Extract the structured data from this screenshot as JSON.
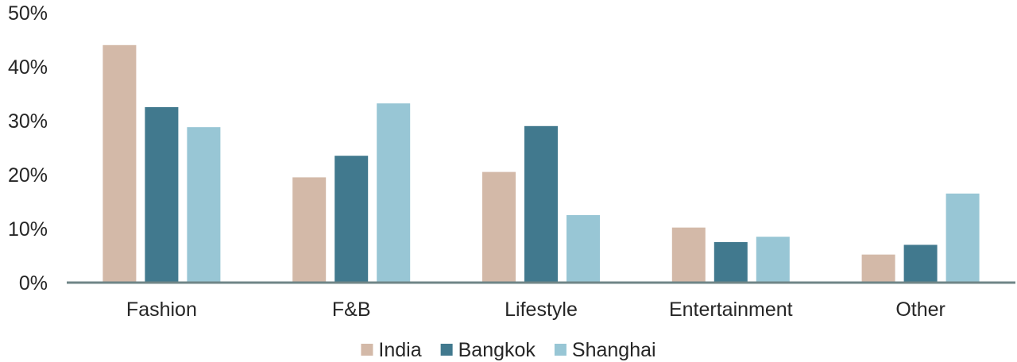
{
  "chart_data": {
    "type": "bar",
    "categories": [
      "Fashion",
      "F&B",
      "Lifestyle",
      "Entertainment",
      "Other"
    ],
    "series": [
      {
        "name": "India",
        "color": "#d3b9a8",
        "values": [
          44,
          19.5,
          20.5,
          10.2,
          5.2
        ]
      },
      {
        "name": "Bangkok",
        "color": "#41798e",
        "values": [
          32.5,
          23.5,
          29,
          7.5,
          7
        ]
      },
      {
        "name": "Shanghai",
        "color": "#98c6d5",
        "values": [
          28.8,
          33.2,
          12.5,
          8.5,
          16.5
        ]
      }
    ],
    "ylim": [
      0,
      50
    ],
    "yticks": [
      "0%",
      "10%",
      "20%",
      "30%",
      "40%",
      "50%"
    ],
    "grid": false,
    "legend_position": "bottom",
    "axis_color": "#6f8587"
  }
}
